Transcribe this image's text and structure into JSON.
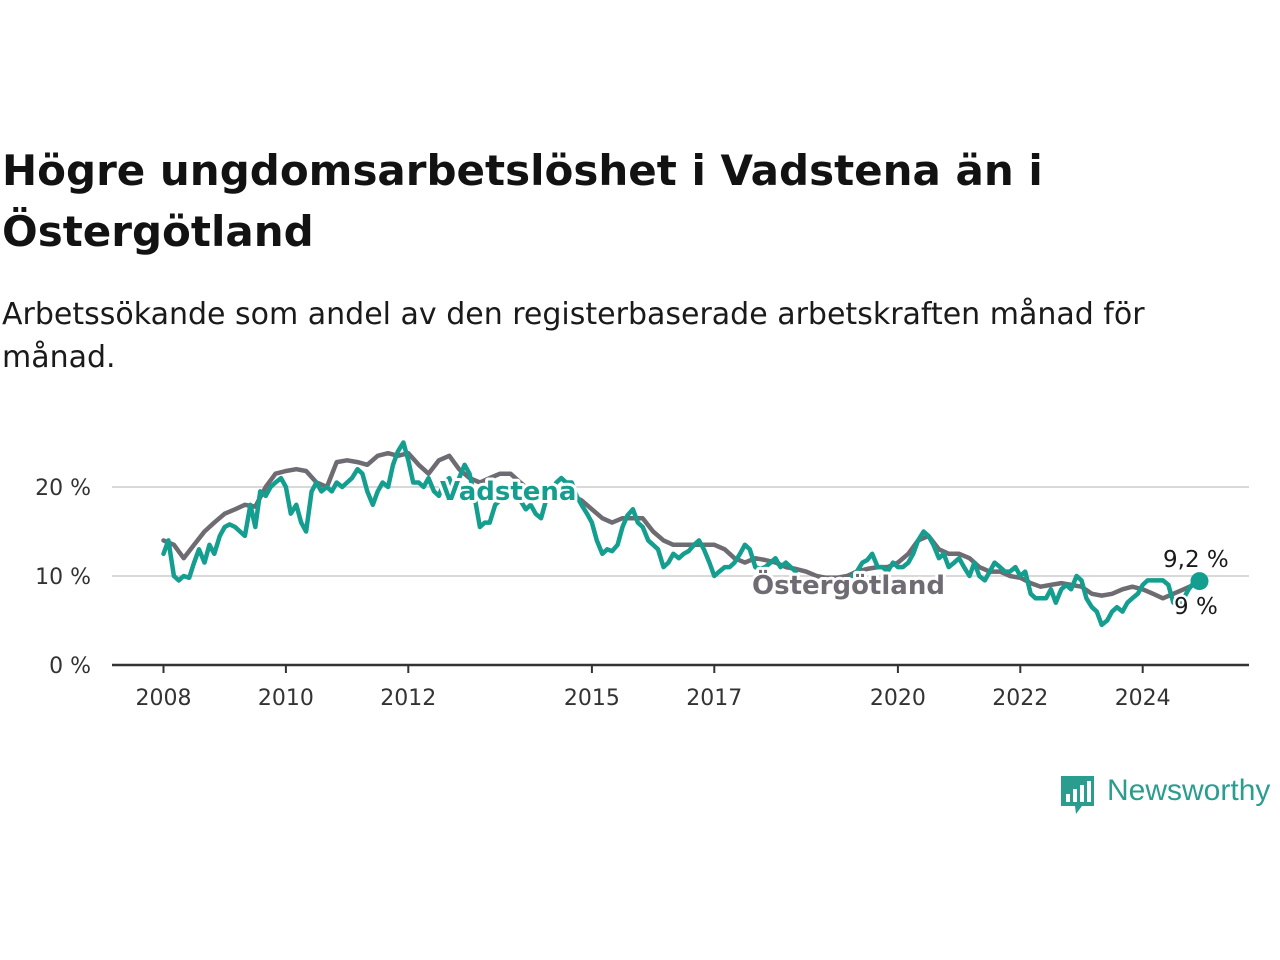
{
  "title": "Högre ungdomsarbetslöshet i Vadstena än i Östergötland",
  "subtitle": "Arbetssökande som andel av den registerbaserade arbetskraften månad för månad.",
  "brand": {
    "name": "Newsworthy",
    "color": "#2a9d8f",
    "icon": "chart-speech-bubble-icon"
  },
  "chart_data": {
    "type": "line",
    "y_ticks": [
      {
        "value": 0,
        "label": "0 %"
      },
      {
        "value": 10,
        "label": "10 %"
      },
      {
        "value": 20,
        "label": "20 %"
      }
    ],
    "x_ticks": [
      {
        "value": 2008,
        "label": "2008"
      },
      {
        "value": 2010,
        "label": "2010"
      },
      {
        "value": 2012,
        "label": "2012"
      },
      {
        "value": 2015,
        "label": "2015"
      },
      {
        "value": 2017,
        "label": "2017"
      },
      {
        "value": 2020,
        "label": "2020"
      },
      {
        "value": 2022,
        "label": "2022"
      },
      {
        "value": 2024,
        "label": "2024"
      }
    ],
    "xlim": [
      2007.2,
      2025.7
    ],
    "ylim": [
      0,
      25
    ],
    "grid": "horizontal",
    "series": [
      {
        "name": "Östergötland",
        "color": "#6e6c72",
        "end_label": "9 %",
        "points": [
          [
            2008.0,
            14.0
          ],
          [
            2008.17,
            13.5
          ],
          [
            2008.33,
            12.0
          ],
          [
            2008.5,
            13.5
          ],
          [
            2008.67,
            15.0
          ],
          [
            2008.83,
            16.0
          ],
          [
            2009.0,
            17.0
          ],
          [
            2009.17,
            17.5
          ],
          [
            2009.33,
            18.0
          ],
          [
            2009.5,
            17.8
          ],
          [
            2009.67,
            20.0
          ],
          [
            2009.83,
            21.5
          ],
          [
            2010.0,
            21.8
          ],
          [
            2010.17,
            22.0
          ],
          [
            2010.33,
            21.8
          ],
          [
            2010.5,
            20.5
          ],
          [
            2010.67,
            20.0
          ],
          [
            2010.83,
            22.8
          ],
          [
            2011.0,
            23.0
          ],
          [
            2011.17,
            22.8
          ],
          [
            2011.33,
            22.5
          ],
          [
            2011.5,
            23.5
          ],
          [
            2011.67,
            23.8
          ],
          [
            2011.83,
            23.5
          ],
          [
            2012.0,
            23.8
          ],
          [
            2012.17,
            22.5
          ],
          [
            2012.33,
            21.5
          ],
          [
            2012.5,
            23.0
          ],
          [
            2012.67,
            23.5
          ],
          [
            2012.83,
            22.0
          ],
          [
            2013.0,
            21.0
          ],
          [
            2013.17,
            20.5
          ],
          [
            2013.33,
            21.0
          ],
          [
            2013.5,
            21.5
          ],
          [
            2013.67,
            21.5
          ],
          [
            2013.83,
            20.5
          ],
          [
            2014.0,
            19.5
          ],
          [
            2014.17,
            19.0
          ],
          [
            2014.33,
            19.5
          ],
          [
            2014.5,
            20.0
          ],
          [
            2014.67,
            19.0
          ],
          [
            2014.83,
            18.5
          ],
          [
            2015.0,
            17.5
          ],
          [
            2015.17,
            16.5
          ],
          [
            2015.33,
            16.0
          ],
          [
            2015.5,
            16.5
          ],
          [
            2015.67,
            16.5
          ],
          [
            2015.83,
            16.5
          ],
          [
            2016.0,
            15.0
          ],
          [
            2016.17,
            14.0
          ],
          [
            2016.33,
            13.5
          ],
          [
            2016.5,
            13.5
          ],
          [
            2016.67,
            13.5
          ],
          [
            2016.83,
            13.5
          ],
          [
            2017.0,
            13.5
          ],
          [
            2017.17,
            13.0
          ],
          [
            2017.33,
            12.0
          ],
          [
            2017.5,
            11.5
          ],
          [
            2017.67,
            12.0
          ],
          [
            2017.83,
            11.8
          ],
          [
            2018.0,
            11.5
          ],
          [
            2018.17,
            11.0
          ],
          [
            2018.33,
            10.8
          ],
          [
            2018.5,
            10.5
          ],
          [
            2018.67,
            10.0
          ],
          [
            2018.83,
            9.8
          ],
          [
            2019.0,
            9.8
          ],
          [
            2019.17,
            10.0
          ],
          [
            2019.33,
            10.5
          ],
          [
            2019.5,
            10.8
          ],
          [
            2019.67,
            11.0
          ],
          [
            2019.83,
            11.0
          ],
          [
            2020.0,
            11.5
          ],
          [
            2020.17,
            12.5
          ],
          [
            2020.33,
            14.0
          ],
          [
            2020.5,
            14.5
          ],
          [
            2020.67,
            13.0
          ],
          [
            2020.83,
            12.5
          ],
          [
            2021.0,
            12.5
          ],
          [
            2021.17,
            12.0
          ],
          [
            2021.33,
            11.0
          ],
          [
            2021.5,
            10.5
          ],
          [
            2021.67,
            10.5
          ],
          [
            2021.83,
            10.0
          ],
          [
            2022.0,
            9.8
          ],
          [
            2022.17,
            9.2
          ],
          [
            2022.33,
            8.8
          ],
          [
            2022.5,
            9.0
          ],
          [
            2022.67,
            9.2
          ],
          [
            2022.83,
            9.0
          ],
          [
            2023.0,
            8.8
          ],
          [
            2023.17,
            8.0
          ],
          [
            2023.33,
            7.8
          ],
          [
            2023.5,
            8.0
          ],
          [
            2023.67,
            8.5
          ],
          [
            2023.83,
            8.8
          ],
          [
            2024.0,
            8.5
          ],
          [
            2024.17,
            8.0
          ],
          [
            2024.33,
            7.5
          ],
          [
            2024.5,
            8.0
          ],
          [
            2024.67,
            8.5
          ],
          [
            2024.83,
            9.0
          ]
        ]
      },
      {
        "name": "Vadstena",
        "color": "#149e8f",
        "end_label": "9,2 %",
        "points": [
          [
            2008.0,
            12.5
          ],
          [
            2008.08,
            14.0
          ],
          [
            2008.17,
            10.0
          ],
          [
            2008.25,
            9.5
          ],
          [
            2008.33,
            10.0
          ],
          [
            2008.42,
            9.8
          ],
          [
            2008.5,
            11.5
          ],
          [
            2008.58,
            13.0
          ],
          [
            2008.67,
            11.5
          ],
          [
            2008.75,
            13.5
          ],
          [
            2008.83,
            12.5
          ],
          [
            2008.92,
            14.5
          ],
          [
            2009.0,
            15.5
          ],
          [
            2009.08,
            15.8
          ],
          [
            2009.17,
            15.5
          ],
          [
            2009.25,
            15.0
          ],
          [
            2009.33,
            14.5
          ],
          [
            2009.42,
            18.0
          ],
          [
            2009.5,
            15.5
          ],
          [
            2009.58,
            19.5
          ],
          [
            2009.67,
            19.0
          ],
          [
            2009.75,
            20.0
          ],
          [
            2009.83,
            20.5
          ],
          [
            2009.92,
            21.0
          ],
          [
            2010.0,
            20.0
          ],
          [
            2010.08,
            17.0
          ],
          [
            2010.17,
            18.0
          ],
          [
            2010.25,
            16.0
          ],
          [
            2010.33,
            15.0
          ],
          [
            2010.42,
            19.5
          ],
          [
            2010.5,
            20.5
          ],
          [
            2010.58,
            19.5
          ],
          [
            2010.67,
            20.0
          ],
          [
            2010.75,
            19.5
          ],
          [
            2010.83,
            20.5
          ],
          [
            2010.92,
            20.0
          ],
          [
            2011.0,
            20.5
          ],
          [
            2011.08,
            21.0
          ],
          [
            2011.17,
            22.0
          ],
          [
            2011.25,
            21.5
          ],
          [
            2011.33,
            19.5
          ],
          [
            2011.42,
            18.0
          ],
          [
            2011.5,
            19.5
          ],
          [
            2011.58,
            20.5
          ],
          [
            2011.67,
            20.0
          ],
          [
            2011.75,
            22.5
          ],
          [
            2011.83,
            24.0
          ],
          [
            2011.92,
            25.0
          ],
          [
            2012.0,
            23.0
          ],
          [
            2012.08,
            20.5
          ],
          [
            2012.17,
            20.5
          ],
          [
            2012.25,
            20.0
          ],
          [
            2012.33,
            21.0
          ],
          [
            2012.42,
            19.5
          ],
          [
            2012.5,
            19.0
          ],
          [
            2012.58,
            20.5
          ],
          [
            2012.67,
            21.0
          ],
          [
            2012.75,
            19.5
          ],
          [
            2012.83,
            21.0
          ],
          [
            2012.92,
            22.5
          ],
          [
            2013.0,
            21.5
          ],
          [
            2013.08,
            19.0
          ],
          [
            2013.17,
            15.5
          ],
          [
            2013.25,
            16.0
          ],
          [
            2013.33,
            16.0
          ],
          [
            2013.42,
            18.0
          ],
          [
            2013.5,
            18.5
          ],
          [
            2013.58,
            19.0
          ],
          [
            2013.67,
            19.5
          ],
          [
            2013.75,
            19.0
          ],
          [
            2013.83,
            18.5
          ],
          [
            2013.92,
            17.5
          ],
          [
            2014.0,
            18.0
          ],
          [
            2014.08,
            17.0
          ],
          [
            2014.17,
            16.5
          ],
          [
            2014.25,
            18.5
          ],
          [
            2014.33,
            19.5
          ],
          [
            2014.42,
            20.5
          ],
          [
            2014.5,
            21.0
          ],
          [
            2014.58,
            20.5
          ],
          [
            2014.67,
            20.5
          ],
          [
            2014.75,
            19.0
          ],
          [
            2014.83,
            18.0
          ],
          [
            2014.92,
            17.0
          ],
          [
            2015.0,
            16.0
          ],
          [
            2015.08,
            14.0
          ],
          [
            2015.17,
            12.5
          ],
          [
            2015.25,
            13.0
          ],
          [
            2015.33,
            12.8
          ],
          [
            2015.42,
            13.5
          ],
          [
            2015.5,
            15.5
          ],
          [
            2015.58,
            16.8
          ],
          [
            2015.67,
            17.5
          ],
          [
            2015.75,
            16.0
          ],
          [
            2015.83,
            15.5
          ],
          [
            2015.92,
            14.0
          ],
          [
            2016.0,
            13.5
          ],
          [
            2016.08,
            13.0
          ],
          [
            2016.17,
            11.0
          ],
          [
            2016.25,
            11.5
          ],
          [
            2016.33,
            12.5
          ],
          [
            2016.42,
            12.0
          ],
          [
            2016.5,
            12.5
          ],
          [
            2016.58,
            12.8
          ],
          [
            2016.67,
            13.5
          ],
          [
            2016.75,
            14.0
          ],
          [
            2016.83,
            13.0
          ],
          [
            2016.92,
            11.5
          ],
          [
            2017.0,
            10.0
          ],
          [
            2017.08,
            10.5
          ],
          [
            2017.17,
            11.0
          ],
          [
            2017.25,
            11.0
          ],
          [
            2017.33,
            11.5
          ],
          [
            2017.42,
            12.5
          ],
          [
            2017.5,
            13.5
          ],
          [
            2017.58,
            13.0
          ],
          [
            2017.67,
            11.0
          ],
          [
            2017.75,
            10.8
          ],
          [
            2017.83,
            11.0
          ],
          [
            2017.92,
            11.5
          ],
          [
            2018.0,
            12.0
          ],
          [
            2018.08,
            11.0
          ],
          [
            2018.17,
            11.5
          ],
          [
            2018.25,
            11.0
          ],
          [
            2018.33,
            10.5
          ],
          [
            2019.25,
            10.0
          ],
          [
            2019.33,
            10.5
          ],
          [
            2019.42,
            11.5
          ],
          [
            2019.5,
            11.8
          ],
          [
            2019.58,
            12.5
          ],
          [
            2019.67,
            11.0
          ],
          [
            2019.75,
            11.0
          ],
          [
            2019.83,
            10.5
          ],
          [
            2019.92,
            11.5
          ],
          [
            2020.0,
            11.0
          ],
          [
            2020.08,
            11.0
          ],
          [
            2020.17,
            11.5
          ],
          [
            2020.25,
            12.5
          ],
          [
            2020.33,
            14.0
          ],
          [
            2020.42,
            15.0
          ],
          [
            2020.5,
            14.5
          ],
          [
            2020.58,
            13.5
          ],
          [
            2020.67,
            12.0
          ],
          [
            2020.75,
            12.5
          ],
          [
            2020.83,
            11.0
          ],
          [
            2020.92,
            11.5
          ],
          [
            2021.0,
            12.0
          ],
          [
            2021.08,
            11.0
          ],
          [
            2021.17,
            10.0
          ],
          [
            2021.25,
            11.5
          ],
          [
            2021.33,
            10.0
          ],
          [
            2021.42,
            9.5
          ],
          [
            2021.5,
            10.5
          ],
          [
            2021.58,
            11.5
          ],
          [
            2021.67,
            11.0
          ],
          [
            2021.75,
            10.5
          ],
          [
            2021.83,
            10.5
          ],
          [
            2021.92,
            11.0
          ],
          [
            2022.0,
            10.0
          ],
          [
            2022.08,
            10.5
          ],
          [
            2022.17,
            8.0
          ],
          [
            2022.25,
            7.5
          ],
          [
            2022.33,
            7.5
          ],
          [
            2022.42,
            7.5
          ],
          [
            2022.5,
            8.5
          ],
          [
            2022.58,
            7.0
          ],
          [
            2022.67,
            8.5
          ],
          [
            2022.75,
            9.0
          ],
          [
            2022.83,
            8.5
          ],
          [
            2022.92,
            10.0
          ],
          [
            2023.0,
            9.5
          ],
          [
            2023.08,
            7.5
          ],
          [
            2023.17,
            6.5
          ],
          [
            2023.25,
            6.0
          ],
          [
            2023.33,
            4.5
          ],
          [
            2023.42,
            5.0
          ],
          [
            2023.5,
            6.0
          ],
          [
            2023.58,
            6.5
          ],
          [
            2023.67,
            6.0
          ],
          [
            2023.75,
            7.0
          ],
          [
            2023.83,
            7.5
          ],
          [
            2023.92,
            8.0
          ],
          [
            2024.0,
            9.0
          ],
          [
            2024.08,
            9.5
          ],
          [
            2024.17,
            9.5
          ],
          [
            2024.25,
            9.5
          ],
          [
            2024.33,
            9.5
          ],
          [
            2024.42,
            9.0
          ],
          [
            2024.5,
            7.0
          ],
          [
            2024.58,
            6.8
          ],
          [
            2024.67,
            7.5
          ],
          [
            2024.75,
            8.5
          ],
          [
            2024.83,
            9.2
          ]
        ]
      }
    ]
  }
}
